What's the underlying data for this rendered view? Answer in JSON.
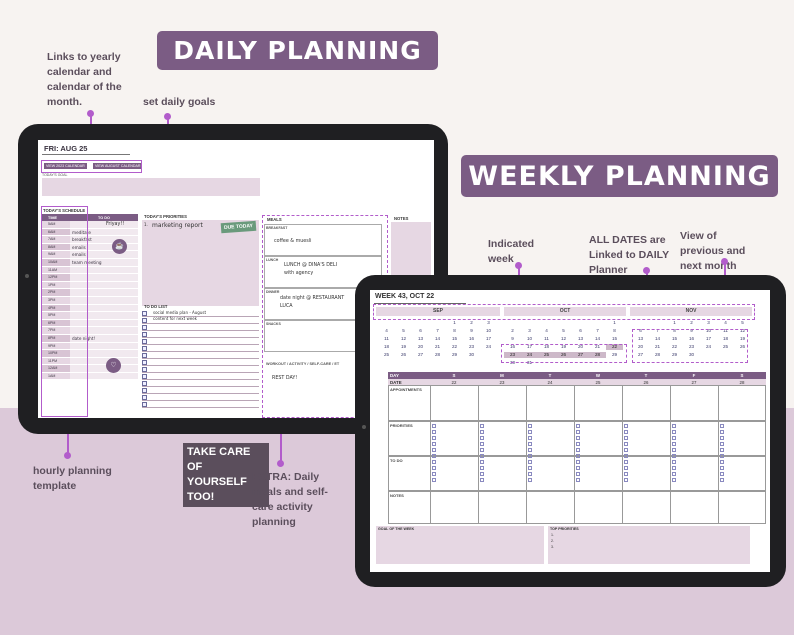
{
  "banners": {
    "daily": "DAILY PLANNING",
    "weekly": "WEEKLY PLANNING"
  },
  "annotations": {
    "links_yearly": "Links to yearly calendar and calendar of the month.",
    "set_goals": "set daily goals",
    "hourly": "hourly planning template",
    "take_care": "TAKE CARE OF YOURSELF TOO!",
    "extra": "EXTRA: Daily meals and self-care activity planning",
    "indicated_week": "Indicated week",
    "all_dates": "ALL DATES are Linked to DAILY Planner",
    "view_prev_next": "View of previous and next month calendar"
  },
  "daily": {
    "date_title": "FRI: AUG 25",
    "link_year": "VIEW 2023 CALENDAR",
    "link_month": "VIEW AUGUST CALENDAR",
    "goal_label": "TODAY'S GOAL",
    "schedule_label": "TODAY'S SCHEDULE",
    "col_time": "TIME",
    "col_todo": "TO DO",
    "schedule": [
      {
        "time": "5AM",
        "task": ""
      },
      {
        "time": "6AM",
        "task": "meditate"
      },
      {
        "time": "7AM",
        "task": "breakfast"
      },
      {
        "time": "8AM",
        "task": "emails"
      },
      {
        "time": "9AM",
        "task": "emails"
      },
      {
        "time": "10AM",
        "task": "team meeting"
      },
      {
        "time": "11AM",
        "task": ""
      },
      {
        "time": "12PM",
        "task": ""
      },
      {
        "time": "1PM",
        "task": ""
      },
      {
        "time": "2PM",
        "task": ""
      },
      {
        "time": "3PM",
        "task": ""
      },
      {
        "time": "4PM",
        "task": ""
      },
      {
        "time": "5PM",
        "task": ""
      },
      {
        "time": "6PM",
        "task": ""
      },
      {
        "time": "7PM",
        "task": ""
      },
      {
        "time": "8PM",
        "task": "date night!"
      },
      {
        "time": "9PM",
        "task": ""
      },
      {
        "time": "10PM",
        "task": ""
      },
      {
        "time": "11PM",
        "task": ""
      },
      {
        "time": "12AM",
        "task": ""
      },
      {
        "time": "1AM",
        "task": ""
      }
    ],
    "friyay": "Friyay!!",
    "priorities_label": "TODAY'S PRIORITIES",
    "priority_1_num": "1.",
    "priority_1": "marketing report",
    "due_today": "DUE TODAY",
    "todo_label": "TO DO LIST",
    "todo_items": [
      "social media plan - August",
      "content for next week"
    ],
    "meals_label": "MEALS",
    "breakfast_label": "BREAKFAST",
    "breakfast": "coffee & muesli",
    "lunch_label": "LUNCH",
    "lunch": "LUNCH @ DINA'S DELI with agency",
    "dinner_label": "DINNER",
    "dinner": "date night @ RESTAURANT LUCA",
    "snacks_label": "SNACKS",
    "workout_label": "WORKOUT / ACTIVITY / SELF-CARE / ET",
    "workout": "REST DAY!",
    "notes_label": "NOTES"
  },
  "weekly": {
    "title": "WEEK 43, OCT 22",
    "months": [
      "SEP",
      "OCT",
      "NOV"
    ],
    "sep": [
      "",
      "",
      "",
      "",
      "1",
      "2",
      "3",
      "4",
      "5",
      "6",
      "7",
      "8",
      "9",
      "10",
      "11",
      "12",
      "13",
      "14",
      "15",
      "16",
      "17",
      "18",
      "19",
      "20",
      "21",
      "22",
      "23",
      "24",
      "25",
      "26",
      "27",
      "28",
      "29",
      "30"
    ],
    "oct": [
      "",
      "",
      "",
      "",
      "",
      "",
      "1",
      "2",
      "3",
      "4",
      "5",
      "6",
      "7",
      "8",
      "9",
      "10",
      "11",
      "12",
      "13",
      "14",
      "15",
      "16",
      "17",
      "18",
      "19",
      "20",
      "21",
      "22",
      "23",
      "24",
      "25",
      "26",
      "27",
      "28",
      "29",
      "30",
      "31"
    ],
    "nov": [
      "",
      "",
      "1",
      "2",
      "3",
      "4",
      "5",
      "6",
      "7",
      "8",
      "9",
      "10",
      "11",
      "12",
      "13",
      "14",
      "15",
      "16",
      "17",
      "18",
      "19",
      "20",
      "21",
      "22",
      "23",
      "24",
      "25",
      "26",
      "27",
      "28",
      "29",
      "30"
    ],
    "day_label": "DAY",
    "date_label": "DATE",
    "days": [
      "S",
      "M",
      "T",
      "W",
      "T",
      "F",
      "S"
    ],
    "dates": [
      "22",
      "23",
      "24",
      "25",
      "26",
      "27",
      "28"
    ],
    "appointments": "APPOINTMENTS",
    "priorities": "PRIORITIES",
    "todo": "TO DO",
    "notes": "NOTES",
    "goal_of_week": "GOAL OF THE WEEK",
    "top_priorities": "TOP PRIORITIES",
    "tp_1": "1.",
    "tp_2": "2.",
    "tp_3": "3."
  },
  "colors": {
    "accent": "#7b5c84",
    "highlight": "#b25ccb",
    "light": "#e6d7e3",
    "bg_bottom": "#dcc9d9"
  }
}
